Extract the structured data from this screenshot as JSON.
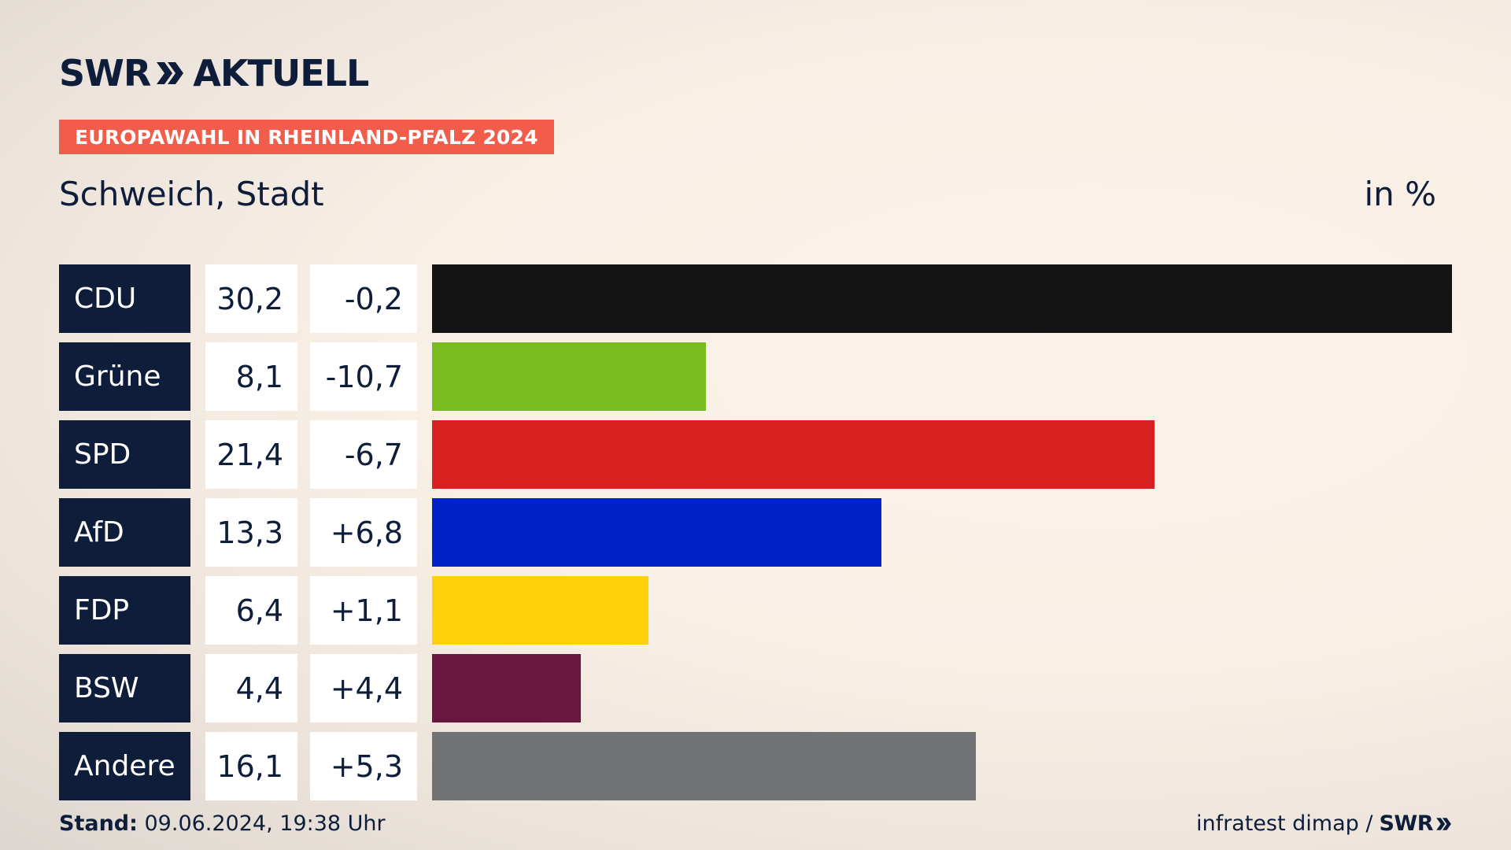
{
  "header": {
    "logo_text": "SWR",
    "logo_suffix": "AKTUELL",
    "banner": "EUROPAWAHL IN RHEINLAND-PFALZ 2024",
    "region": "Schweich, Stadt",
    "unit": "in %"
  },
  "chart_data": {
    "type": "bar",
    "orientation": "horizontal",
    "categories": [
      "CDU",
      "Grüne",
      "SPD",
      "AfD",
      "FDP",
      "BSW",
      "Andere"
    ],
    "values": [
      30.2,
      8.1,
      21.4,
      13.3,
      6.4,
      4.4,
      16.1
    ],
    "value_labels": [
      "30,2",
      "8,1",
      "21,4",
      "13,3",
      "6,4",
      "4,4",
      "16,1"
    ],
    "change_labels": [
      "-0,2",
      "-10,7",
      "-6,7",
      "+6,8",
      "+1,1",
      "+4,4",
      "+5,3"
    ],
    "colors": [
      "#141414",
      "#78bc1e",
      "#d7201f",
      "#0022c8",
      "#ffcf0a",
      "#6a173f",
      "#717274"
    ],
    "xlim": [
      0,
      30.2
    ]
  },
  "footer": {
    "stand_label": "Stand:",
    "stand_value": " 09.06.2024, 19:38 Uhr",
    "source": "infratest dimap /",
    "source_logo": "SWR"
  }
}
